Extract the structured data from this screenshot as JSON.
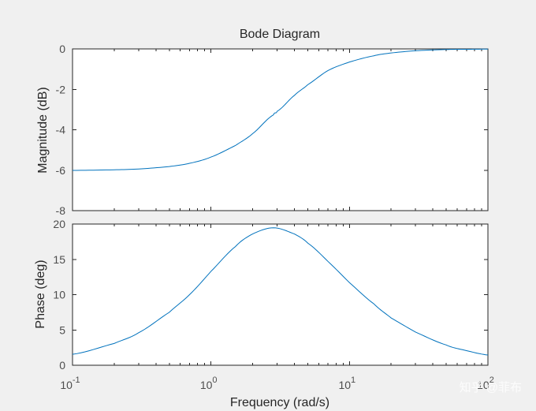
{
  "chart_data": {
    "type": "line",
    "title": "Bode Diagram",
    "xlabel": "Frequency  (rad/s)",
    "xscale": "log",
    "xlim": [
      0.1,
      100
    ],
    "xticks": [
      0.1,
      1,
      10,
      100
    ],
    "xtick_labels": [
      {
        "base": "10",
        "exp": "-1"
      },
      {
        "base": "10",
        "exp": "0"
      },
      {
        "base": "10",
        "exp": "1"
      },
      {
        "base": "10",
        "exp": "2"
      }
    ],
    "grid": false,
    "panels": [
      {
        "name": "magnitude",
        "ylabel": "Magnitude (dB)",
        "ylim": [
          -8,
          0
        ],
        "yticks": [
          0,
          -2,
          -4,
          -6,
          -8
        ],
        "series": [
          {
            "name": "magnitude",
            "color": "#0072bd",
            "x": [
              0.1,
              0.2,
              0.3,
              0.5,
              0.7,
              1,
              1.5,
              2,
              2.83,
              3,
              4,
              5,
              7,
              10,
              15,
              20,
              30,
              50,
              70,
              100
            ],
            "y": [
              -6.01,
              -5.98,
              -5.94,
              -5.82,
              -5.66,
              -5.35,
              -4.78,
              -4.19,
              -3.26,
              -3.09,
              -2.3,
              -1.77,
              -1.07,
              -0.65,
              -0.34,
              -0.2,
              -0.09,
              -0.03,
              -0.02,
              -0.01
            ]
          }
        ]
      },
      {
        "name": "phase",
        "ylabel": "Phase (deg)",
        "ylim": [
          0,
          20
        ],
        "yticks": [
          0,
          5,
          10,
          15,
          20
        ],
        "series": [
          {
            "name": "phase",
            "color": "#0072bd",
            "x": [
              0.1,
              0.2,
              0.3,
              0.5,
              0.7,
              1,
              1.5,
              2,
              2.83,
              4,
              5,
              7,
              10,
              15,
              20,
              30,
              50,
              70,
              100
            ],
            "y": [
              1.55,
              3.09,
              4.6,
              7.5,
              10.0,
              13.3,
              16.8,
              18.6,
              19.47,
              18.6,
              17.3,
              14.7,
              11.7,
              8.7,
              6.7,
              4.7,
              2.87,
              2.07,
              1.45
            ]
          }
        ]
      }
    ]
  },
  "watermark": "知乎 @菲布"
}
